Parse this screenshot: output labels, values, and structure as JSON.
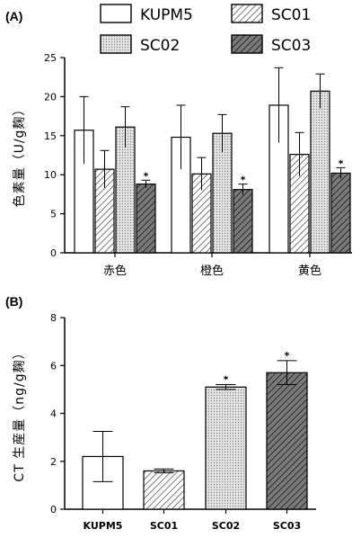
{
  "panels": [
    {
      "label": "(A)"
    },
    {
      "label": "(B)"
    }
  ],
  "chart_data": [
    {
      "type": "bar",
      "ylabel": "色素量（U/g麹）",
      "ylim": [
        0,
        25
      ],
      "yticks": [
        0,
        5,
        10,
        15,
        20,
        25
      ],
      "categories": [
        "赤色",
        "橙色",
        "黄色"
      ],
      "legend": {
        "placement": "top",
        "columns": 2
      },
      "series": [
        {
          "name": "KUPM5",
          "pattern": "white",
          "values": [
            15.7,
            14.8,
            18.9
          ],
          "errors": [
            4.3,
            4.1,
            4.8
          ],
          "stars": [
            false,
            false,
            false
          ]
        },
        {
          "name": "SC01",
          "pattern": "hatch-light",
          "values": [
            10.7,
            10.1,
            12.6
          ],
          "errors": [
            2.4,
            2.1,
            2.8
          ],
          "stars": [
            false,
            false,
            false
          ]
        },
        {
          "name": "SC02",
          "pattern": "dots",
          "values": [
            16.1,
            15.3,
            20.7
          ],
          "errors": [
            2.6,
            2.4,
            2.2
          ],
          "stars": [
            false,
            false,
            false
          ]
        },
        {
          "name": "SC03",
          "pattern": "hatch-dark",
          "values": [
            8.8,
            8.1,
            10.2
          ],
          "errors": [
            0.5,
            0.7,
            0.7
          ],
          "stars": [
            true,
            true,
            true
          ]
        }
      ],
      "star_label": "*"
    },
    {
      "type": "bar",
      "ylabel": "CT 生産量（ng/g麹）",
      "ylim": [
        0,
        8
      ],
      "yticks": [
        0,
        2,
        4,
        6,
        8
      ],
      "categories": [
        "KUPM5",
        "SC01",
        "SC02",
        "SC03"
      ],
      "patterns": [
        "white",
        "hatch-light",
        "dots",
        "hatch-dark"
      ],
      "values": [
        2.2,
        1.6,
        5.1,
        5.7
      ],
      "errors": [
        1.05,
        0.08,
        0.1,
        0.5
      ],
      "stars": [
        false,
        false,
        true,
        true
      ],
      "star_label": "*"
    }
  ]
}
